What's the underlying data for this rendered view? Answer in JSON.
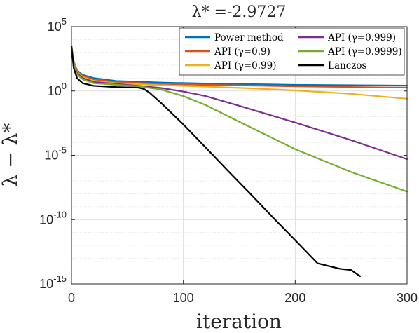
{
  "chart_data": {
    "type": "line",
    "title": "λ* =-2.9727",
    "xlabel": "iteration",
    "ylabel": "λ − λ*",
    "x_scale": "linear",
    "y_scale": "log",
    "xlim": [
      0,
      300
    ],
    "ylim": [
      1e-15,
      100000.0
    ],
    "x_ticks": [
      {
        "value": 0,
        "label": "0"
      },
      {
        "value": 100,
        "label": "100"
      },
      {
        "value": 200,
        "label": "200"
      },
      {
        "value": 300,
        "label": "300"
      }
    ],
    "y_ticks": [
      {
        "value": 100000.0,
        "base": "10",
        "exp": "5"
      },
      {
        "value": 1,
        "base": "10",
        "exp": "0"
      },
      {
        "value": 1e-05,
        "base": "10",
        "exp": "-5"
      },
      {
        "value": 1e-10,
        "base": "10",
        "exp": "-10"
      },
      {
        "value": 1e-15,
        "base": "10",
        "exp": "-15"
      }
    ],
    "grid": true,
    "legend_position": "top-right",
    "series": [
      {
        "name": "Power method",
        "color": "#0072BD",
        "points": [
          [
            0,
            3000
          ],
          [
            2,
            200
          ],
          [
            5,
            40
          ],
          [
            10,
            18
          ],
          [
            20,
            10
          ],
          [
            40,
            6
          ],
          [
            80,
            4.5
          ],
          [
            120,
            3.8
          ],
          [
            200,
            3.0
          ],
          [
            300,
            2.6
          ]
        ]
      },
      {
        "name": "API (γ=0.9)",
        "color": "#D95319",
        "points": [
          [
            0,
            3000
          ],
          [
            2,
            180
          ],
          [
            5,
            35
          ],
          [
            10,
            15
          ],
          [
            20,
            8
          ],
          [
            40,
            5
          ],
          [
            80,
            3.6
          ],
          [
            120,
            3.0
          ],
          [
            200,
            2.3
          ],
          [
            300,
            1.8
          ]
        ]
      },
      {
        "name": "API (γ=0.99)",
        "color": "#EDB120",
        "points": [
          [
            0,
            3000
          ],
          [
            2,
            150
          ],
          [
            5,
            30
          ],
          [
            10,
            12
          ],
          [
            20,
            6
          ],
          [
            40,
            4
          ],
          [
            80,
            2.8
          ],
          [
            120,
            2.2
          ],
          [
            160,
            1.6
          ],
          [
            200,
            1.1
          ],
          [
            250,
            0.6
          ],
          [
            300,
            0.25
          ]
        ]
      },
      {
        "name": "API (γ=0.999)",
        "color": "#7E2F8E",
        "points": [
          [
            0,
            3000
          ],
          [
            2,
            120
          ],
          [
            5,
            25
          ],
          [
            10,
            10
          ],
          [
            20,
            5
          ],
          [
            40,
            3.5
          ],
          [
            60,
            2.5
          ],
          [
            80,
            1.7
          ],
          [
            100,
            0.9
          ],
          [
            120,
            0.4
          ],
          [
            150,
            0.07
          ],
          [
            200,
            0.0035
          ],
          [
            250,
            0.00015
          ],
          [
            300,
            5e-06
          ]
        ]
      },
      {
        "name": "API (γ=0.9999)",
        "color": "#77AC30",
        "points": [
          [
            0,
            3000
          ],
          [
            2,
            100
          ],
          [
            5,
            20
          ],
          [
            10,
            8
          ],
          [
            20,
            4
          ],
          [
            40,
            3
          ],
          [
            60,
            2.3
          ],
          [
            80,
            1.3
          ],
          [
            100,
            0.4
          ],
          [
            120,
            0.08
          ],
          [
            150,
            0.004
          ],
          [
            200,
            3e-05
          ],
          [
            250,
            5e-07
          ],
          [
            300,
            1.5e-08
          ]
        ]
      },
      {
        "name": "Lanczos",
        "color": "#000000",
        "points": [
          [
            0,
            3000
          ],
          [
            2,
            60
          ],
          [
            5,
            10
          ],
          [
            10,
            4
          ],
          [
            20,
            2.5
          ],
          [
            40,
            2
          ],
          [
            60,
            1.8
          ],
          [
            65,
            1.4
          ],
          [
            70,
            0.7
          ],
          [
            80,
            0.12
          ],
          [
            100,
            0.0025
          ],
          [
            120,
            4e-05
          ],
          [
            140,
            6e-07
          ],
          [
            160,
            1e-08
          ],
          [
            180,
            1.5e-10
          ],
          [
            200,
            2.5e-12
          ],
          [
            220,
            4e-14
          ],
          [
            240,
            1.5e-14
          ],
          [
            250,
            1.2e-14
          ],
          [
            255,
            6e-15
          ],
          [
            258,
            4e-15
          ]
        ]
      }
    ],
    "legend_columns": [
      [
        0,
        1,
        2
      ],
      [
        3,
        4,
        5
      ]
    ]
  }
}
